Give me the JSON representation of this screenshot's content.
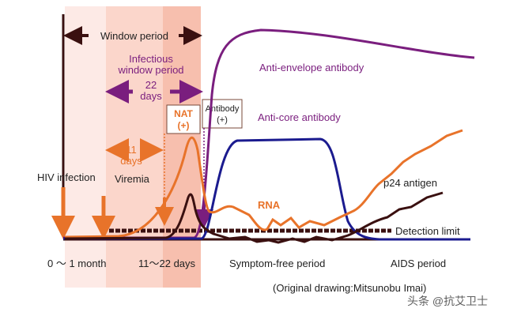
{
  "labels": {
    "window_period": "Window period",
    "infectious_window_line1": "Infectious",
    "infectious_window_line2": "window period",
    "days22_num": "22",
    "days22_unit": "days",
    "nat_line1": "NAT",
    "nat_line2": "(+)",
    "antibody_line1": "Antibody",
    "antibody_line2": "(+)",
    "days11_num": "11",
    "days11_unit": "days",
    "hiv_infection": "HIV infection",
    "viremia": "Viremia",
    "anti_envelope": "Anti-envelope antibody",
    "anti_core": "Anti-core antibody",
    "rna": "RNA",
    "p24": "p24 antigen",
    "detection_limit": "Detection limit",
    "x_0_1_month": "0 ～ 1 month",
    "x_11_22_days": "11～22 days",
    "x_symptom_free": "Symptom-free period",
    "x_aids": "AIDS period",
    "credit": "(Original drawing:Mitsunobu Imai)",
    "watermark": "头条 @抗艾卫士"
  },
  "colors": {
    "anti_envelope": "#7a1e7e",
    "anti_core": "#1b1b8f",
    "rna": "#e8732a",
    "p24": "#3a1010",
    "band_light": "#fdeae6",
    "band_mid": "#fbd4c8",
    "band_dark": "#f7bfae"
  }
}
